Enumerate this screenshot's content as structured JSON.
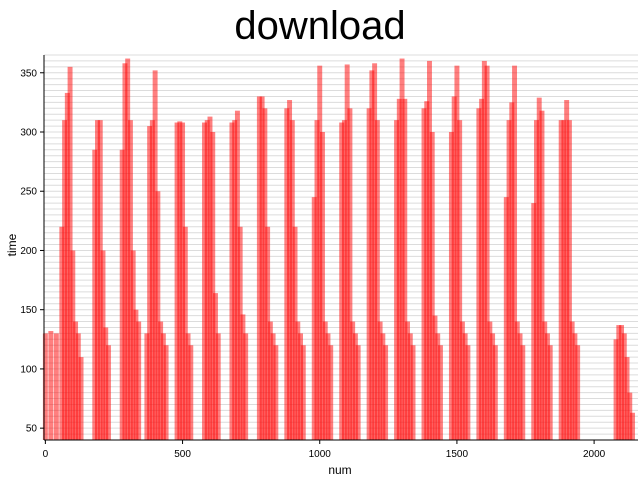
{
  "chart_data": {
    "type": "bar",
    "title": "download",
    "xlabel": "num",
    "ylabel": "time",
    "xlim": [
      -5,
      2160
    ],
    "ylim": [
      40,
      365
    ],
    "xticks": [
      0,
      500,
      1000,
      1500,
      2000
    ],
    "yticks": [
      50,
      100,
      150,
      200,
      250,
      300,
      350
    ],
    "grid": "horizontal",
    "bar_color": "#ff0000",
    "bar_opacity": 0.5,
    "series": [
      {
        "x": [
          0,
          20,
          40,
          60,
          70,
          80,
          90,
          100,
          110,
          120,
          130,
          180,
          190,
          200,
          210,
          220,
          230,
          280,
          290,
          300,
          310,
          320,
          330,
          340,
          370,
          380,
          390,
          400,
          410,
          420,
          430,
          440,
          480,
          490,
          500,
          510,
          520,
          530,
          580,
          590,
          600,
          610,
          620,
          630,
          680,
          690,
          700,
          710,
          720,
          730,
          780,
          790,
          800,
          810,
          820,
          830,
          840,
          880,
          890,
          900,
          910,
          920,
          930,
          940,
          980,
          990,
          1000,
          1010,
          1020,
          1030,
          1040,
          1080,
          1090,
          1100,
          1110,
          1120,
          1130,
          1140,
          1180,
          1190,
          1200,
          1210,
          1220,
          1230,
          1240,
          1280,
          1290,
          1300,
          1310,
          1320,
          1330,
          1340,
          1380,
          1390,
          1400,
          1410,
          1420,
          1430,
          1440,
          1480,
          1490,
          1500,
          1510,
          1520,
          1530,
          1540,
          1580,
          1590,
          1600,
          1610,
          1620,
          1630,
          1640,
          1680,
          1690,
          1700,
          1710,
          1720,
          1730,
          1740,
          1780,
          1790,
          1800,
          1810,
          1820,
          1830,
          1840,
          1880,
          1890,
          1900,
          1910,
          1920,
          1930,
          1940,
          2080,
          2090,
          2100,
          2110,
          2120,
          2130,
          2140
        ],
        "values": [
          130,
          132,
          130,
          220,
          310,
          333,
          355,
          200,
          140,
          130,
          110,
          285,
          310,
          310,
          200,
          135,
          120,
          285,
          358,
          362,
          310,
          200,
          150,
          140,
          130,
          305,
          310,
          352,
          250,
          140,
          130,
          120,
          308,
          309,
          308,
          220,
          130,
          120,
          308,
          310,
          313,
          300,
          164,
          130,
          308,
          310,
          318,
          220,
          146,
          130,
          330,
          330,
          320,
          220,
          140,
          130,
          120,
          320,
          327,
          310,
          220,
          140,
          130,
          120,
          245,
          310,
          356,
          300,
          140,
          130,
          120,
          308,
          310,
          357,
          320,
          140,
          130,
          120,
          320,
          352,
          358,
          310,
          140,
          130,
          120,
          310,
          328,
          362,
          328,
          140,
          130,
          120,
          320,
          326,
          360,
          300,
          145,
          130,
          120,
          300,
          330,
          356,
          310,
          140,
          130,
          120,
          320,
          328,
          360,
          356,
          140,
          130,
          120,
          245,
          310,
          325,
          356,
          140,
          130,
          120,
          240,
          310,
          329,
          318,
          140,
          130,
          120,
          310,
          310,
          327,
          310,
          140,
          130,
          120,
          125,
          137,
          137,
          130,
          110,
          80,
          63
        ]
      }
    ]
  }
}
